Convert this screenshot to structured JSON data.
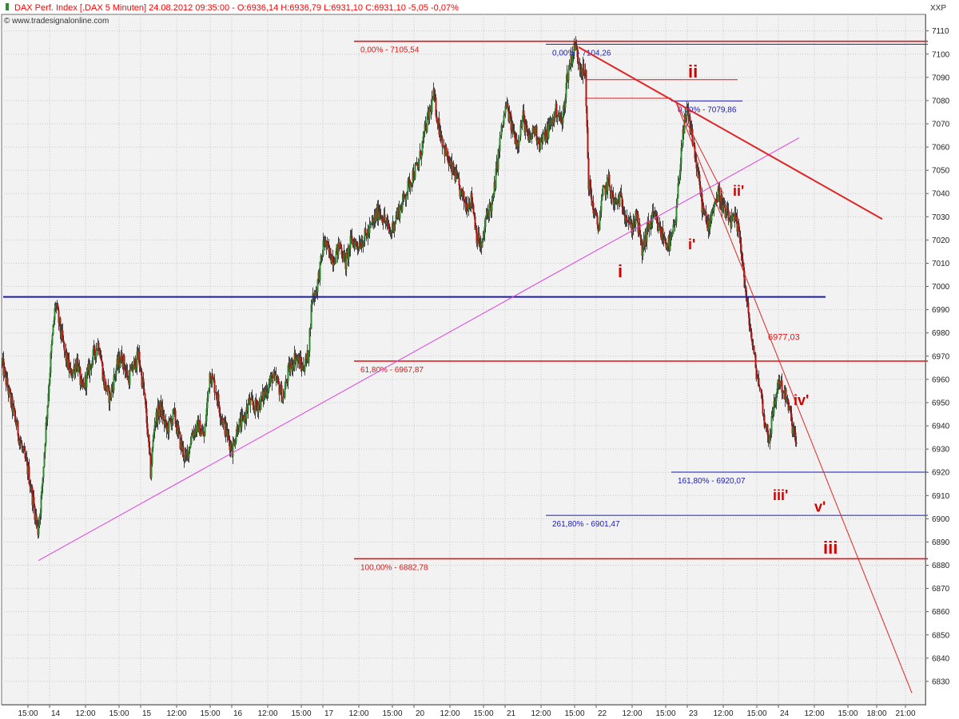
{
  "header": {
    "title": "DAX Perf. Index [.DAX  5 Minuten] 24.08.2012 09:35:00 - O:6936,14 H:6936,79 L:6931,10 C:6931,10 -5,05 -0,07%",
    "source": "© www.tradesignalonline.com",
    "corner_label": "XXP"
  },
  "colors": {
    "background": "#f2f2f2",
    "grid": "#c8c8c8",
    "candle_up": "#2e8b2e",
    "candle_down": "#b31515",
    "fib_red": "#e01515",
    "fib_blue": "#1c1cb0",
    "trend_magenta": "#e040e0",
    "trend_red": "#e02525",
    "wave_label": "#d00000"
  },
  "chart_data": {
    "type": "candlestick",
    "title": "DAX Perf. Index [.DAX  5 Minuten]",
    "ylim": [
      6820,
      7120
    ],
    "yticks": [
      6830,
      6840,
      6850,
      6860,
      6870,
      6880,
      6890,
      6900,
      6910,
      6920,
      6930,
      6940,
      6950,
      6960,
      6970,
      6980,
      6990,
      7000,
      7010,
      7020,
      7030,
      7040,
      7050,
      7060,
      7070,
      7080,
      7090,
      7100,
      7110
    ],
    "xlim_bars": [
      0,
      1200
    ],
    "xticks": [
      {
        "label": "15:00",
        "bar": 66
      },
      {
        "label": "14",
        "bar": 120
      },
      {
        "label": "12:00",
        "bar": 210
      },
      {
        "label": "15:00",
        "bar": 294
      },
      {
        "label": "15",
        "bar": 348
      },
      {
        "label": "12:00",
        "bar": 438
      },
      {
        "label": "15:00",
        "bar": 522
      },
      {
        "label": "16",
        "bar": 576
      },
      {
        "label": "12:00",
        "bar": 666
      },
      {
        "label": "15:00",
        "bar": 750
      },
      {
        "label": "17",
        "bar": 804
      },
      {
        "label": "12:00",
        "bar": 894
      },
      {
        "label": "15:00",
        "bar": 978
      },
      {
        "label": "20",
        "bar": 1032
      },
      {
        "label": "12:00",
        "bar": 1122
      },
      {
        "label": "15:00",
        "bar": 1206
      },
      {
        "label": "21",
        "bar": 1260
      },
      {
        "label": "12:00",
        "bar": 1350
      },
      {
        "label": "15:00",
        "bar": 1434
      },
      {
        "label": "22",
        "bar": 1488
      },
      {
        "label": "12:00",
        "bar": 1578
      },
      {
        "label": "15:00",
        "bar": 1662
      },
      {
        "label": "23",
        "bar": 1716
      },
      {
        "label": "12:00",
        "bar": 1806
      },
      {
        "label": "15:00",
        "bar": 1890
      },
      {
        "label": "24",
        "bar": 1944
      },
      {
        "label": "12:00",
        "bar": 2034
      },
      {
        "label": "15:00",
        "bar": 2118
      },
      {
        "label": "18:00",
        "bar": 2190
      },
      {
        "label": "21:00",
        "bar": 2262
      }
    ],
    "price_path": [
      [
        0,
        6967
      ],
      [
        12,
        6958
      ],
      [
        30,
        6945
      ],
      [
        50,
        6930
      ],
      [
        66,
        6920
      ],
      [
        80,
        6905
      ],
      [
        90,
        6895
      ],
      [
        100,
        6912
      ],
      [
        108,
        6935
      ],
      [
        118,
        6960
      ],
      [
        126,
        6978
      ],
      [
        134,
        6993
      ],
      [
        142,
        6985
      ],
      [
        156,
        6972
      ],
      [
        172,
        6962
      ],
      [
        188,
        6968
      ],
      [
        200,
        6955
      ],
      [
        214,
        6962
      ],
      [
        228,
        6970
      ],
      [
        242,
        6976
      ],
      [
        256,
        6958
      ],
      [
        270,
        6952
      ],
      [
        286,
        6965
      ],
      [
        300,
        6970
      ],
      [
        316,
        6960
      ],
      [
        330,
        6966
      ],
      [
        342,
        6970
      ],
      [
        356,
        6953
      ],
      [
        364,
        6938
      ],
      [
        372,
        6920
      ],
      [
        382,
        6942
      ],
      [
        396,
        6948
      ],
      [
        412,
        6938
      ],
      [
        430,
        6945
      ],
      [
        446,
        6933
      ],
      [
        460,
        6925
      ],
      [
        476,
        6937
      ],
      [
        492,
        6940
      ],
      [
        506,
        6935
      ],
      [
        520,
        6963
      ],
      [
        534,
        6956
      ],
      [
        548,
        6945
      ],
      [
        562,
        6937
      ],
      [
        576,
        6930
      ],
      [
        590,
        6940
      ],
      [
        604,
        6942
      ],
      [
        618,
        6950
      ],
      [
        632,
        6948
      ],
      [
        646,
        6950
      ],
      [
        660,
        6955
      ],
      [
        676,
        6961
      ],
      [
        690,
        6958
      ],
      [
        704,
        6952
      ],
      [
        716,
        6963
      ],
      [
        734,
        6970
      ],
      [
        752,
        6965
      ],
      [
        766,
        6970
      ],
      [
        776,
        6995
      ],
      [
        786,
        6998
      ],
      [
        798,
        7010
      ],
      [
        806,
        7020
      ],
      [
        816,
        7015
      ],
      [
        830,
        7012
      ],
      [
        846,
        7018
      ],
      [
        860,
        7010
      ],
      [
        874,
        7020
      ],
      [
        888,
        7018
      ],
      [
        902,
        7020
      ],
      [
        916,
        7023
      ],
      [
        930,
        7028
      ],
      [
        944,
        7033
      ],
      [
        958,
        7028
      ],
      [
        972,
        7023
      ],
      [
        986,
        7030
      ],
      [
        1000,
        7035
      ],
      [
        1014,
        7042
      ],
      [
        1028,
        7048
      ],
      [
        1042,
        7052
      ],
      [
        1056,
        7065
      ],
      [
        1070,
        7075
      ],
      [
        1080,
        7082
      ],
      [
        1092,
        7070
      ],
      [
        1106,
        7060
      ],
      [
        1120,
        7052
      ],
      [
        1134,
        7048
      ],
      [
        1148,
        7040
      ],
      [
        1162,
        7035
      ],
      [
        1176,
        7038
      ],
      [
        1188,
        7022
      ],
      [
        1200,
        7016
      ],
      [
        1214,
        7032
      ],
      [
        1228,
        7036
      ],
      [
        1236,
        7048
      ],
      [
        1248,
        7065
      ],
      [
        1262,
        7078
      ],
      [
        1276,
        7068
      ],
      [
        1290,
        7062
      ],
      [
        1304,
        7073
      ],
      [
        1318,
        7062
      ],
      [
        1332,
        7068
      ],
      [
        1346,
        7062
      ],
      [
        1360,
        7065
      ],
      [
        1374,
        7070
      ],
      [
        1388,
        7076
      ],
      [
        1402,
        7070
      ],
      [
        1414,
        7090
      ],
      [
        1424,
        7098
      ],
      [
        1434,
        7104
      ],
      [
        1446,
        7096
      ],
      [
        1460,
        7090
      ],
      [
        1468,
        7045
      ],
      [
        1478,
        7035
      ],
      [
        1492,
        7025
      ],
      [
        1504,
        7040
      ],
      [
        1518,
        7045
      ],
      [
        1532,
        7035
      ],
      [
        1546,
        7038
      ],
      [
        1560,
        7032
      ],
      [
        1574,
        7025
      ],
      [
        1588,
        7030
      ],
      [
        1602,
        7015
      ],
      [
        1616,
        7025
      ],
      [
        1630,
        7030
      ],
      [
        1644,
        7025
      ],
      [
        1658,
        7020
      ],
      [
        1672,
        7018
      ],
      [
        1686,
        7028
      ],
      [
        1700,
        7060
      ],
      [
        1714,
        7075
      ],
      [
        1726,
        7066
      ],
      [
        1740,
        7050
      ],
      [
        1752,
        7035
      ],
      [
        1766,
        7025
      ],
      [
        1780,
        7035
      ],
      [
        1794,
        7040
      ],
      [
        1808,
        7032
      ],
      [
        1822,
        7028
      ],
      [
        1836,
        7028
      ],
      [
        1848,
        7020
      ],
      [
        1862,
        6995
      ],
      [
        1874,
        6980
      ],
      [
        1886,
        6965
      ],
      [
        1898,
        6955
      ],
      [
        1910,
        6940
      ],
      [
        1920,
        6935
      ],
      [
        1932,
        6948
      ],
      [
        1944,
        6960
      ],
      [
        1956,
        6955
      ],
      [
        1968,
        6948
      ],
      [
        1978,
        6940
      ],
      [
        1990,
        6931
      ]
    ],
    "fibonacci_levels": [
      {
        "label": "0,00% - 7105,54",
        "price": 7105.54,
        "x0_bar": 882,
        "x1_bar": 2318,
        "label_bar": 882,
        "color": "red"
      },
      {
        "label": "61,80% - 6967,87",
        "price": 6967.87,
        "x0_bar": 882,
        "x1_bar": 2318,
        "label_bar": 882,
        "color": "red"
      },
      {
        "label": "100,00% - 6882,78",
        "price": 6882.78,
        "x0_bar": 882,
        "x1_bar": 2318,
        "label_bar": 882,
        "color": "red"
      },
      {
        "label": "0,00% - 7104,26",
        "price": 7104.26,
        "x0_bar": 1362,
        "x1_bar": 2318,
        "label_bar": 1362,
        "color": "blue"
      },
      {
        "label": "0,00% - 7079,86",
        "price": 7079.86,
        "x0_bar": 1676,
        "x1_bar": 1854,
        "label_bar": 1676,
        "color": "blue"
      },
      {
        "label": "161,80% - 6920,07",
        "price": 6920.07,
        "x0_bar": 1676,
        "x1_bar": 2318,
        "label_bar": 1676,
        "color": "blue"
      },
      {
        "label": "261,80% - 6901,47",
        "price": 6901.47,
        "x0_bar": 1362,
        "x1_bar": 2318,
        "label_bar": 1362,
        "color": "blue"
      }
    ],
    "support_line": {
      "price": 6995.5,
      "x0_bar": 4,
      "x1_bar": 2062
    },
    "short_red_lines": [
      {
        "price": 7089,
        "x0_bar": 1460,
        "x1_bar": 1842
      },
      {
        "price": 7081,
        "x0_bar": 1460,
        "x1_bar": 1676
      }
    ],
    "trendlines": [
      {
        "from": [
          92,
          6882
        ],
        "to": [
          1996,
          7064
        ],
        "color": "magenta",
        "width": 1
      },
      {
        "from": [
          1444,
          7103
        ],
        "to": [
          2204,
          7029
        ],
        "color": "red",
        "width": 2
      },
      {
        "from": [
          1686,
          7080
        ],
        "to": [
          2278,
          6825
        ],
        "color": "red",
        "width": 1
      },
      {
        "from": [
          1686,
          7080
        ],
        "to": [
          1806,
          7040
        ],
        "color": "red",
        "width": 1
      }
    ],
    "annotations": [
      {
        "text": "ii",
        "bar": 1718,
        "price": 7090,
        "size": 22
      },
      {
        "text": "ii'",
        "bar": 1830,
        "price": 7039,
        "size": 18
      },
      {
        "text": "i",
        "bar": 1542,
        "price": 7004,
        "size": 22
      },
      {
        "text": "i'",
        "bar": 1718,
        "price": 7016,
        "size": 18
      },
      {
        "text": "6977,03",
        "bar": 1918,
        "price": 6977,
        "size": 11
      },
      {
        "text": "iv'",
        "bar": 1982,
        "price": 6949,
        "size": 18
      },
      {
        "text": "iii'",
        "bar": 1930,
        "price": 6908,
        "size": 18
      },
      {
        "text": "v'",
        "bar": 2034,
        "price": 6903,
        "size": 18
      },
      {
        "text": "iii",
        "bar": 2056,
        "price": 6885,
        "size": 22
      }
    ]
  }
}
